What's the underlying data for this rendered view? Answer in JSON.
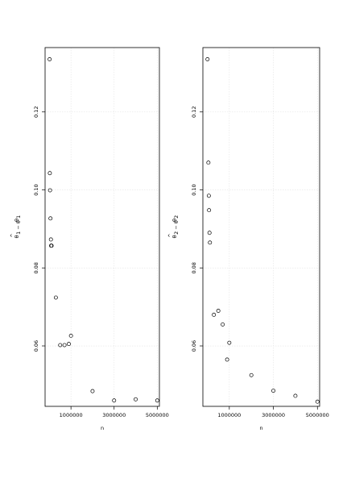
{
  "chart_data": [
    {
      "type": "scatter",
      "xlabel": "n",
      "ylabel_main": "θ",
      "ylabel_hat": "^",
      "ylabel_mid": "1 − θ",
      "ylabel_sub": "1",
      "xlim": [
        -200000,
        5100000
      ],
      "ylim": [
        0.0445,
        0.1365
      ],
      "xticks": [
        1000000,
        3000000,
        5000000
      ],
      "xtick_labels": [
        "1000000",
        "3000000",
        "5000000"
      ],
      "yticks": [
        0.06,
        0.08,
        0.1,
        0.12
      ],
      "ytick_labels": [
        "0.06",
        "0.08",
        "0.10",
        "0.12"
      ],
      "grid": true,
      "x": [
        10000,
        20000,
        30000,
        50000,
        70000,
        80000,
        100000,
        300000,
        500000,
        700000,
        900000,
        1000000,
        2000000,
        3000000,
        4000000,
        5000000
      ],
      "y": [
        0.1335,
        0.1043,
        0.0999,
        0.0927,
        0.0873,
        0.0857,
        0.0857,
        0.0724,
        0.0602,
        0.0602,
        0.0605,
        0.0626,
        0.0484,
        0.046,
        0.0463,
        0.046
      ]
    },
    {
      "type": "scatter",
      "xlabel": "n",
      "ylabel_main": "θ",
      "ylabel_hat": "^",
      "ylabel_mid": "2 − θ",
      "ylabel_sub": "2",
      "xlim": [
        -200000,
        5100000
      ],
      "ylim": [
        0.0445,
        0.1365
      ],
      "xticks": [
        1000000,
        3000000,
        5000000
      ],
      "xtick_labels": [
        "1000000",
        "3000000",
        "5000000"
      ],
      "yticks": [
        0.06,
        0.08,
        0.1,
        0.12
      ],
      "ytick_labels": [
        "0.06",
        "0.08",
        "0.10",
        "0.12"
      ],
      "grid": true,
      "x": [
        10000,
        50000,
        70000,
        80000,
        100000,
        120000,
        300000,
        500000,
        700000,
        900000,
        1000000,
        2000000,
        3000000,
        4000000,
        5000000
      ],
      "y": [
        0.1335,
        0.107,
        0.0985,
        0.0948,
        0.089,
        0.0865,
        0.068,
        0.069,
        0.0655,
        0.0565,
        0.0608,
        0.0525,
        0.0485,
        0.0472,
        0.0457
      ]
    }
  ]
}
